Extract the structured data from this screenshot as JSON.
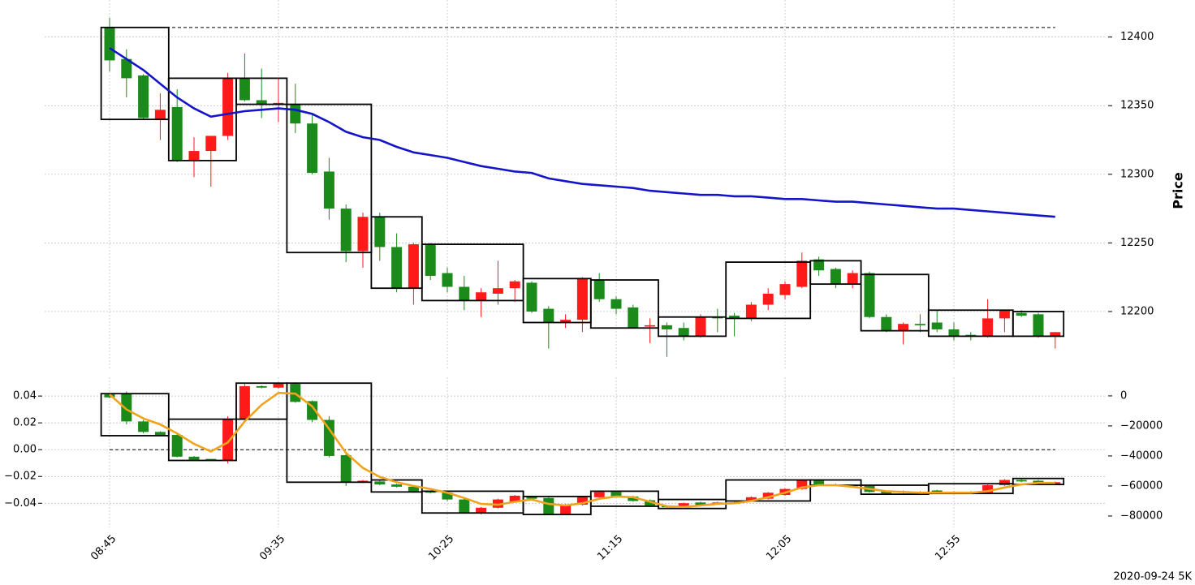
{
  "chart_data": [
    {
      "type": "candlestick",
      "ylabel": "Price",
      "ylim": [
        12158,
        12427
      ],
      "yticks": [
        12200,
        12250,
        12300,
        12350,
        12400
      ],
      "grid": true,
      "up_color": "#ff1a1a",
      "down_color": "#1a8a1a",
      "ohlc": {
        "open": [
          12407,
          12384,
          12372,
          12340,
          12349,
          12310,
          12317,
          12328,
          12370,
          12354,
          12351,
          12351,
          12337,
          12302,
          12275,
          12244,
          12269,
          12247,
          12217,
          12249,
          12228,
          12218,
          12208,
          12213,
          12217,
          12221,
          12202,
          12192,
          12194,
          12223,
          12209,
          12203,
          12189,
          12190,
          12188,
          12182,
          12196,
          12197,
          12195,
          12205,
          12212,
          12218,
          12238,
          12231,
          12220,
          12228,
          12196,
          12186,
          12191,
          12192,
          12187,
          12183,
          12182,
          12195,
          12199,
          12198,
          12182
        ],
        "high": [
          12414,
          12391,
          12373,
          12359,
          12362,
          12327,
          12328,
          12374,
          12388,
          12377,
          12370,
          12366,
          12344,
          12312,
          12278,
          12272,
          12272,
          12257,
          12250,
          12250,
          12232,
          12226,
          12217,
          12237,
          12223,
          12222,
          12204,
          12198,
          12225,
          12228,
          12211,
          12205,
          12195,
          12192,
          12192,
          12198,
          12202,
          12199,
          12207,
          12217,
          12222,
          12243,
          12240,
          12232,
          12230,
          12229,
          12198,
          12192,
          12198,
          12201,
          12192,
          12185,
          12209,
          12201,
          12201,
          12199,
          12185
        ],
        "low": [
          12375,
          12356,
          12340,
          12325,
          12309,
          12298,
          12291,
          12325,
          12353,
          12341,
          12338,
          12330,
          12300,
          12267,
          12236,
          12232,
          12237,
          12214,
          12205,
          12223,
          12214,
          12201,
          12196,
          12205,
          12207,
          12199,
          12173,
          12188,
          12185,
          12207,
          12198,
          12188,
          12177,
          12167,
          12179,
          12181,
          12185,
          12182,
          12193,
          12201,
          12209,
          12217,
          12226,
          12217,
          12217,
          12195,
          12185,
          12176,
          12185,
          12185,
          12179,
          12179,
          12181,
          12185,
          12196,
          12181,
          12173
        ],
        "close": [
          12383,
          12370,
          12341,
          12347,
          12310,
          12317,
          12328,
          12370,
          12354,
          12351,
          12352,
          12337,
          12301,
          12275,
          12244,
          12269,
          12247,
          12217,
          12249,
          12226,
          12218,
          12208,
          12214,
          12217,
          12222,
          12200,
          12192,
          12194,
          12224,
          12209,
          12202,
          12188,
          12190,
          12187,
          12182,
          12196,
          12195,
          12195,
          12205,
          12213,
          12220,
          12237,
          12230,
          12220,
          12228,
          12196,
          12186,
          12191,
          12190,
          12187,
          12182,
          12182,
          12195,
          12201,
          12197,
          12182,
          12185
        ]
      },
      "lines": [
        {
          "color": "#1414c8",
          "values": [
            12392,
            12384,
            12376,
            12366,
            12356,
            12348,
            12342,
            12344,
            12346,
            12347,
            12348,
            12347,
            12344,
            12338,
            12331,
            12327,
            12325,
            12320,
            12316,
            12314,
            12312,
            12309,
            12306,
            12304,
            12302,
            12301,
            12297,
            12295,
            12293,
            12292,
            12291,
            12290,
            12288,
            12287,
            12286,
            12285,
            12285,
            12284,
            12284,
            12283,
            12282,
            12282,
            12281,
            12280,
            12280,
            12279,
            12278,
            12277,
            12276,
            12275,
            12275,
            12274,
            12273,
            12272,
            12271,
            12270,
            12269
          ]
        }
      ],
      "boxes": [
        [
          0,
          3,
          12407,
          12340
        ],
        [
          4,
          7,
          12370,
          12310
        ],
        [
          8,
          10,
          12370,
          12351
        ],
        [
          11,
          15,
          12351,
          12243
        ],
        [
          16,
          18,
          12269,
          12217
        ],
        [
          19,
          24,
          12249,
          12208
        ],
        [
          25,
          28,
          12224,
          12192
        ],
        [
          29,
          32,
          12223,
          12188
        ],
        [
          33,
          36,
          12196,
          12182
        ],
        [
          37,
          41,
          12236,
          12195
        ],
        [
          42,
          44,
          12237,
          12220
        ],
        [
          45,
          48,
          12227,
          12186
        ],
        [
          49,
          53,
          12201,
          12182
        ],
        [
          54,
          56,
          12200,
          12182
        ]
      ],
      "hline": 12407
    },
    {
      "type": "candlestick",
      "categories": [
        "08:45",
        null,
        null,
        null,
        null,
        null,
        null,
        null,
        null,
        null,
        "09:35",
        null,
        null,
        null,
        null,
        null,
        null,
        null,
        null,
        null,
        "10:25",
        null,
        null,
        null,
        null,
        null,
        null,
        null,
        null,
        null,
        "11:15",
        null,
        null,
        null,
        null,
        null,
        null,
        null,
        null,
        null,
        "12:05",
        null,
        null,
        null,
        null,
        null,
        null,
        null,
        null,
        null,
        "12:55",
        null,
        null,
        null,
        null,
        null,
        null
      ],
      "ylim": [
        -0.058,
        0.054
      ],
      "yticks": [
        {
          "value": -0.04,
          "label": "−0.04"
        },
        {
          "value": -0.02,
          "label": "−0.02"
        },
        {
          "value": 0,
          "label": "0.00"
        },
        0.02,
        0.04
      ],
      "y2lim": [
        -87600,
        12400
      ],
      "y2ticks": [
        {
          "value": -80000,
          "label": "−80000"
        },
        {
          "value": -60000,
          "label": "−60000"
        },
        {
          "value": -40000,
          "label": "−40000"
        },
        {
          "value": -20000,
          "label": "−20000"
        },
        0
      ],
      "grid": true,
      "up_color": "#ff1a1a",
      "down_color": "#1a8a1a",
      "ohlc": {
        "axis": "y2",
        "open": [
          1000,
          1500,
          -17000,
          -24000,
          -26000,
          -40500,
          -42000,
          -43000,
          -15500,
          6500,
          5500,
          8000,
          -3500,
          -16000,
          -39500,
          -57500,
          -57000,
          -59000,
          -60500,
          -63500,
          -64500,
          -69000,
          -78000,
          -74500,
          -70500,
          -67000,
          -68000,
          -79000,
          -72500,
          -67500,
          -64000,
          -67000,
          -69500,
          -73500,
          -73500,
          -71000,
          -72000,
          -71000,
          -70000,
          -68500,
          -66000,
          -62000,
          -56000,
          -59000,
          -59500,
          -60000,
          -63500,
          -64500,
          -64000,
          -63000,
          -64000,
          -64000,
          -64500,
          -59500,
          -56000,
          -56500,
          -58500
        ],
        "high": [
          2000,
          3000,
          -16000,
          -23500,
          -25000,
          -40000,
          -42000,
          -13500,
          8000,
          7000,
          9000,
          9000,
          -3000,
          -13500,
          -39000,
          -56000,
          -56500,
          -58500,
          -60000,
          -63000,
          -64000,
          -68500,
          -74000,
          -68500,
          -66000,
          -66500,
          -67500,
          -72000,
          -66500,
          -63500,
          -63500,
          -66500,
          -69000,
          -73000,
          -71000,
          -70500,
          -70500,
          -70500,
          -67000,
          -64000,
          -61500,
          -55500,
          -55500,
          -58500,
          -59000,
          -59500,
          -63000,
          -63000,
          -63500,
          -62500,
          -63500,
          -63500,
          -59000,
          -55500,
          -55500,
          -56000,
          -57000
        ],
        "low": [
          -1500,
          -19000,
          -25000,
          -26500,
          -41000,
          -43000,
          -43000,
          -45000,
          -16000,
          5000,
          5000,
          -4500,
          -17500,
          -41000,
          -60000,
          -58000,
          -59500,
          -61000,
          -64500,
          -65000,
          -70000,
          -78500,
          -79000,
          -75000,
          -71000,
          -69000,
          -79500,
          -79500,
          -73000,
          -68000,
          -67500,
          -70500,
          -74000,
          -74500,
          -74000,
          -73500,
          -72500,
          -72000,
          -70500,
          -69000,
          -66500,
          -62500,
          -59500,
          -60000,
          -60500,
          -64500,
          -65500,
          -65000,
          -65500,
          -64500,
          -65000,
          -65000,
          -65000,
          -60000,
          -57500,
          -59000,
          -59000
        ],
        "close": [
          -1000,
          -17000,
          -24000,
          -26000,
          -40500,
          -42500,
          -42800,
          -15500,
          6500,
          5500,
          8500,
          -4000,
          -16000,
          -40000,
          -57500,
          -56500,
          -59000,
          -60500,
          -64000,
          -64500,
          -69000,
          -78000,
          -74500,
          -69000,
          -66500,
          -68500,
          -79000,
          -72500,
          -67000,
          -64000,
          -67000,
          -70000,
          -73500,
          -74000,
          -71500,
          -73000,
          -71000,
          -71800,
          -67500,
          -64500,
          -62000,
          -56000,
          -59000,
          -59500,
          -60000,
          -64000,
          -65000,
          -63500,
          -65000,
          -64000,
          -64500,
          -64800,
          -59500,
          -56000,
          -57000,
          -58500,
          -57500
        ]
      },
      "lines": [
        {
          "color": "#f0a41e",
          "axis": "y2",
          "values": [
            1000,
            -9000,
            -15000,
            -19000,
            -25000,
            -32000,
            -37000,
            -31000,
            -17000,
            -6000,
            2000,
            1500,
            -7000,
            -22000,
            -38000,
            -48000,
            -54000,
            -57500,
            -60000,
            -62000,
            -64500,
            -68000,
            -72000,
            -72500,
            -70500,
            -69000,
            -72000,
            -73000,
            -71500,
            -68500,
            -67000,
            -67500,
            -70500,
            -73500,
            -74000,
            -73000,
            -72000,
            -71500,
            -70000,
            -67500,
            -64500,
            -61000,
            -59500,
            -59500,
            -60500,
            -62000,
            -63500,
            -64000,
            -64500,
            -64500,
            -64500,
            -64500,
            -63500,
            -61000,
            -59000,
            -58000,
            -58000
          ]
        }
      ],
      "boxes": [
        [
          0,
          3,
          1500,
          -26500
        ],
        [
          4,
          7,
          -15500,
          -43000
        ],
        [
          8,
          10,
          8500,
          -15500
        ],
        [
          11,
          15,
          8500,
          -57500
        ],
        [
          16,
          18,
          -56000,
          -64000
        ],
        [
          19,
          24,
          -63500,
          -78000
        ],
        [
          25,
          28,
          -67000,
          -79000
        ],
        [
          29,
          32,
          -63500,
          -73500
        ],
        [
          33,
          36,
          -69000,
          -75000
        ],
        [
          37,
          41,
          -56000,
          -70000
        ],
        [
          42,
          44,
          -56000,
          -59500
        ],
        [
          45,
          48,
          -59500,
          -65500
        ],
        [
          49,
          53,
          -58500,
          -65000
        ],
        [
          54,
          56,
          -55000,
          -59000
        ]
      ],
      "boxes_axis": "y2",
      "hline": 0,
      "note": "2020-09-24 5K"
    }
  ]
}
